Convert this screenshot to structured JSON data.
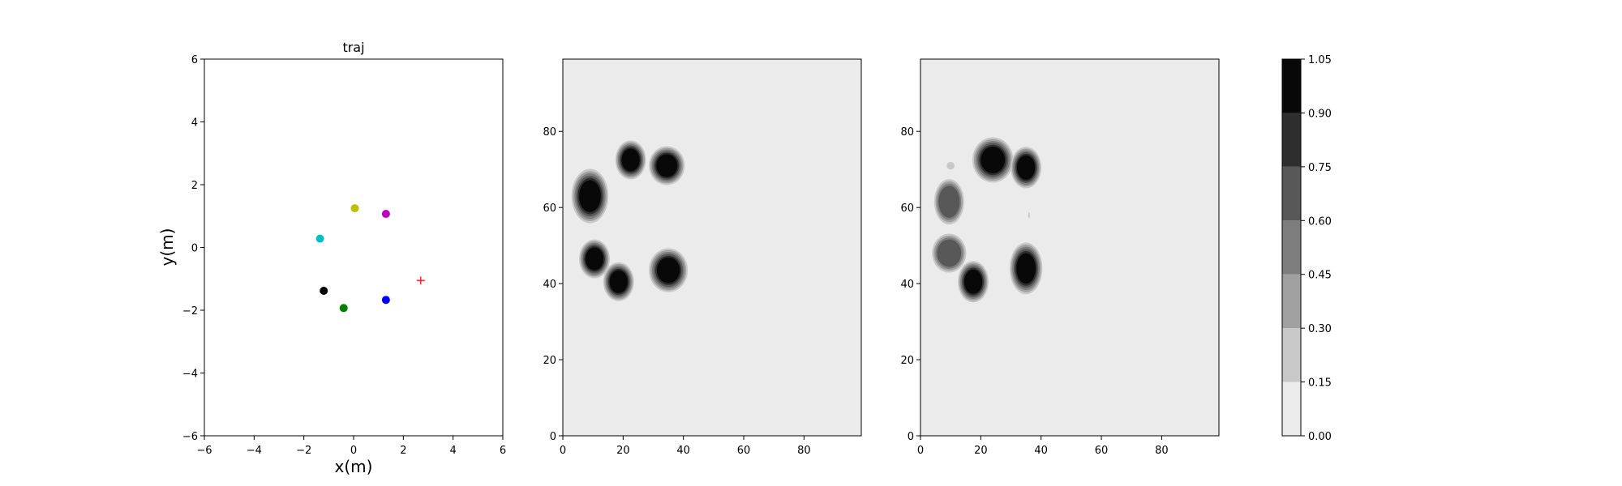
{
  "colors": {
    "background": "#ffffff",
    "axis": "#000000",
    "map_background": "#ebebeb",
    "goal_marker": "#ff0000"
  },
  "chart_data": [
    {
      "type": "scatter",
      "title": "traj",
      "xlabel": "x(m)",
      "ylabel": "y(m)",
      "xlim": [
        -6,
        6
      ],
      "ylim": [
        -6,
        6
      ],
      "xticks": [
        -6,
        -4,
        -2,
        0,
        2,
        4,
        6
      ],
      "yticks": [
        -6,
        -4,
        -2,
        0,
        2,
        4,
        6
      ],
      "grid": false,
      "points": [
        {
          "x": 0.05,
          "y": 1.25,
          "color": "#bfbf00"
        },
        {
          "x": 1.3,
          "y": 1.07,
          "color": "#bf00bf"
        },
        {
          "x": -1.35,
          "y": 0.28,
          "color": "#00bfbf"
        },
        {
          "x": -1.2,
          "y": -1.38,
          "color": "#000000"
        },
        {
          "x": -0.4,
          "y": -1.93,
          "color": "#008000"
        },
        {
          "x": 1.3,
          "y": -1.67,
          "color": "#0000ff"
        }
      ],
      "goal": {
        "x": 2.7,
        "y": -1.05,
        "marker": "+",
        "color": "#ff0000"
      }
    },
    {
      "type": "heatmap",
      "title": "",
      "xlim": [
        0,
        99
      ],
      "ylim": [
        0,
        99
      ],
      "xticks": [
        0,
        20,
        40,
        60,
        80
      ],
      "yticks": [
        0,
        20,
        40,
        60,
        80
      ],
      "blobs": [
        {
          "x": 9,
          "y": 63,
          "rx": 3.6,
          "ry": 4.2,
          "level": 1.0
        },
        {
          "x": 22.5,
          "y": 72.5,
          "rx": 3.0,
          "ry": 3.0,
          "level": 1.0
        },
        {
          "x": 34.5,
          "y": 71,
          "rx": 3.5,
          "ry": 3.0,
          "level": 1.0
        },
        {
          "x": 10.5,
          "y": 46.5,
          "rx": 3.0,
          "ry": 3.0,
          "level": 1.0
        },
        {
          "x": 18.5,
          "y": 40.5,
          "rx": 3.0,
          "ry": 3.0,
          "level": 1.0
        },
        {
          "x": 35,
          "y": 43.5,
          "rx": 3.8,
          "ry": 3.4,
          "level": 1.0
        }
      ]
    },
    {
      "type": "heatmap",
      "title": "",
      "xlim": [
        0,
        99
      ],
      "ylim": [
        0,
        99
      ],
      "xticks": [
        0,
        20,
        40,
        60,
        80
      ],
      "yticks": [
        0,
        20,
        40,
        60,
        80
      ],
      "blobs": [
        {
          "x": 24,
          "y": 72.5,
          "rx": 4.0,
          "ry": 3.5,
          "level": 1.0
        },
        {
          "x": 35,
          "y": 70.5,
          "rx": 3.0,
          "ry": 3.2,
          "level": 1.0
        },
        {
          "x": 9.5,
          "y": 61.5,
          "rx": 3.5,
          "ry": 4.2,
          "level": 0.72
        },
        {
          "x": 9.5,
          "y": 48,
          "rx": 4.0,
          "ry": 3.6,
          "level": 0.6
        },
        {
          "x": 17.5,
          "y": 40.5,
          "rx": 3.0,
          "ry": 3.2,
          "level": 1.0
        },
        {
          "x": 35,
          "y": 44,
          "rx": 3.2,
          "ry": 4.0,
          "level": 1.0
        },
        {
          "x": 10,
          "y": 71,
          "rx": 1.3,
          "ry": 1.0,
          "level": 0.25
        },
        {
          "x": 36,
          "y": 58,
          "rx": 0.3,
          "ry": 0.8,
          "level": 0.2
        }
      ]
    }
  ],
  "colorbar": {
    "levels": [
      0.0,
      0.15,
      0.3,
      0.45,
      0.6,
      0.75,
      0.9,
      1.05
    ],
    "tick_labels": [
      "0.00",
      "0.15",
      "0.30",
      "0.45",
      "0.60",
      "0.75",
      "0.90",
      "1.05"
    ],
    "fills": [
      "#ebebeb",
      "#c8c8c8",
      "#a0a0a0",
      "#7d7d7d",
      "#585858",
      "#2e2e2e",
      "#080808"
    ]
  }
}
